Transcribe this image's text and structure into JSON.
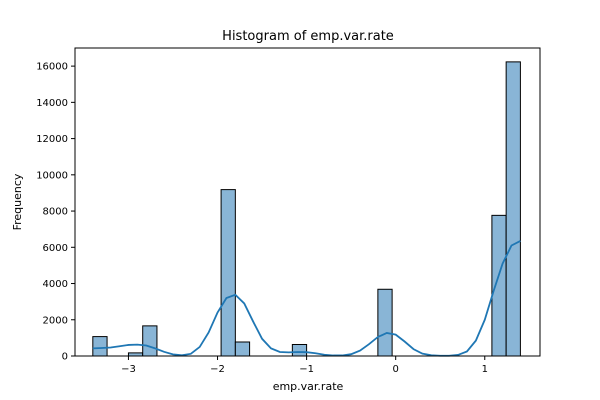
{
  "chart_data": {
    "type": "bar",
    "title": "Histogram of emp.var.rate",
    "xlabel": "emp.var.rate",
    "ylabel": "Frequency",
    "xlim": [
      -3.6,
      1.62
    ],
    "ylim": [
      0,
      17000
    ],
    "x_ticks": [
      -3,
      -2,
      -1,
      0,
      1
    ],
    "x_tick_labels": [
      "−3",
      "−2",
      "−1",
      "0",
      "1"
    ],
    "y_ticks": [
      0,
      2000,
      4000,
      6000,
      8000,
      10000,
      12000,
      14000,
      16000
    ],
    "y_tick_labels": [
      "0",
      "2000",
      "4000",
      "6000",
      "8000",
      "10000",
      "12000",
      "14000",
      "16000"
    ],
    "bar_color": "#89b5d6",
    "kde_color": "#1f77b4",
    "bins": [
      {
        "x0": -3.4,
        "x1": -3.24,
        "count": 1071
      },
      {
        "x0": -3.0,
        "x1": -2.84,
        "count": 172
      },
      {
        "x0": -2.84,
        "x1": -2.68,
        "count": 1663
      },
      {
        "x0": -1.96,
        "x1": -1.8,
        "count": 9184
      },
      {
        "x0": -1.8,
        "x1": -1.64,
        "count": 773
      },
      {
        "x0": -1.16,
        "x1": -1.0,
        "count": 635
      },
      {
        "x0": -0.2,
        "x1": -0.04,
        "count": 3683
      },
      {
        "x0": 1.08,
        "x1": 1.24,
        "count": 7763
      },
      {
        "x0": 1.24,
        "x1": 1.4,
        "count": 16234
      }
    ],
    "kde": {
      "x": [
        -3.4,
        -3.3,
        -3.2,
        -3.1,
        -3.0,
        -2.9,
        -2.8,
        -2.7,
        -2.6,
        -2.5,
        -2.4,
        -2.3,
        -2.2,
        -2.1,
        -2.0,
        -1.9,
        -1.8,
        -1.7,
        -1.6,
        -1.5,
        -1.4,
        -1.3,
        -1.2,
        -1.1,
        -1.0,
        -0.9,
        -0.8,
        -0.7,
        -0.6,
        -0.5,
        -0.4,
        -0.3,
        -0.2,
        -0.1,
        0.0,
        0.1,
        0.2,
        0.3,
        0.4,
        0.5,
        0.6,
        0.7,
        0.8,
        0.9,
        1.0,
        1.1,
        1.2,
        1.3,
        1.4
      ],
      "y": [
        420,
        440,
        470,
        540,
        610,
        630,
        580,
        420,
        230,
        90,
        40,
        120,
        500,
        1300,
        2400,
        3200,
        3380,
        2900,
        1900,
        950,
        420,
        220,
        200,
        220,
        210,
        150,
        70,
        30,
        30,
        100,
        300,
        650,
        1050,
        1270,
        1180,
        800,
        380,
        130,
        40,
        15,
        15,
        60,
        250,
        850,
        2000,
        3600,
        5100,
        6100,
        6350
      ]
    }
  }
}
